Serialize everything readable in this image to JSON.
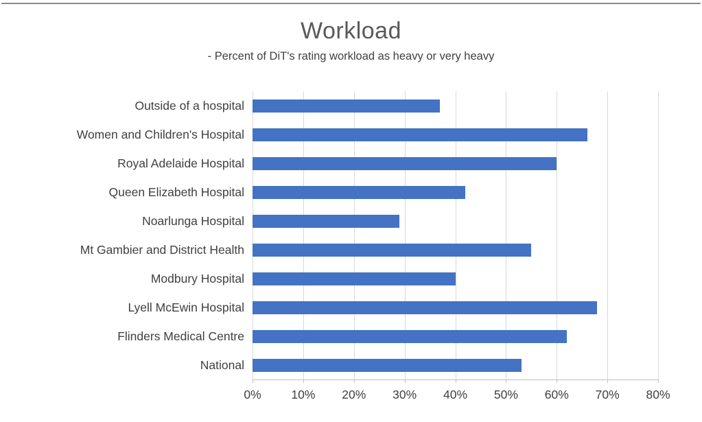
{
  "chart_data": {
    "type": "bar",
    "orientation": "horizontal",
    "title": "Workload",
    "subtitle": "- Percent of DiT's rating workload as heavy or very heavy",
    "categories": [
      "Outside of a hospital",
      "Women and Children's Hospital",
      "Royal Adelaide Hospital",
      "Queen Elizabeth Hospital",
      "Noarlunga Hospital",
      "Mt Gambier and District Health",
      "Modbury Hospital",
      "Lyell McEwin Hospital",
      "Flinders Medical Centre",
      "National"
    ],
    "values": [
      37,
      66,
      60,
      42,
      29,
      55,
      40,
      68,
      62,
      53
    ],
    "unit": "%",
    "xlabel": "",
    "ylabel": "",
    "xlim": [
      0,
      80
    ],
    "x_tick_values": [
      0,
      10,
      20,
      30,
      40,
      50,
      60,
      70,
      80
    ],
    "x_tick_labels": [
      "0%",
      "10%",
      "20%",
      "30%",
      "40%",
      "50%",
      "60%",
      "70%",
      "80%"
    ],
    "grid": true,
    "legend": "none",
    "colors": {
      "bar": "#4472C4",
      "gridline": "#D9D9D9",
      "axis_line": "#BFBFBF",
      "title_text": "#595959",
      "label_text": "#404040",
      "top_rule": "#8A8A8A"
    }
  }
}
